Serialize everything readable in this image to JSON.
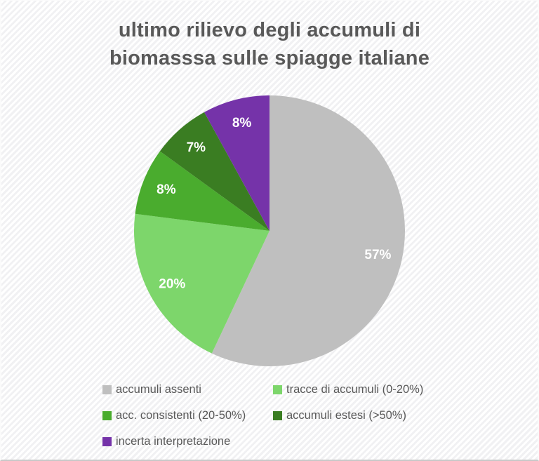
{
  "title": {
    "line1": "ultimo rilievo degli accumuli di",
    "line2": "biomasssa sulle spiagge italiane"
  },
  "chart_data": {
    "type": "pie",
    "title": "ultimo rilievo degli accumuli di biomasssa sulle spiagge italiane",
    "direction": "clockwise",
    "start_angle_deg": 0,
    "legend_position": "bottom",
    "label_color": "#FFFFFF",
    "text_color": "#595959",
    "slices": [
      {
        "label": "accumuli assenti",
        "value": 57,
        "display": "57%",
        "color": "#BFBFBF"
      },
      {
        "label": "tracce di accumuli (0-20%)",
        "value": 20,
        "display": "20%",
        "color": "#7DD66B"
      },
      {
        "label": "acc. consistenti (20-50%)",
        "value": 8,
        "display": "8%",
        "color": "#4AAC2E"
      },
      {
        "label": "accumuli estesi (>50%)",
        "value": 7,
        "display": "7%",
        "color": "#3A7D22"
      },
      {
        "label": "incerta interpretazione",
        "value": 8,
        "display": "8%",
        "color": "#7533A9"
      }
    ]
  }
}
